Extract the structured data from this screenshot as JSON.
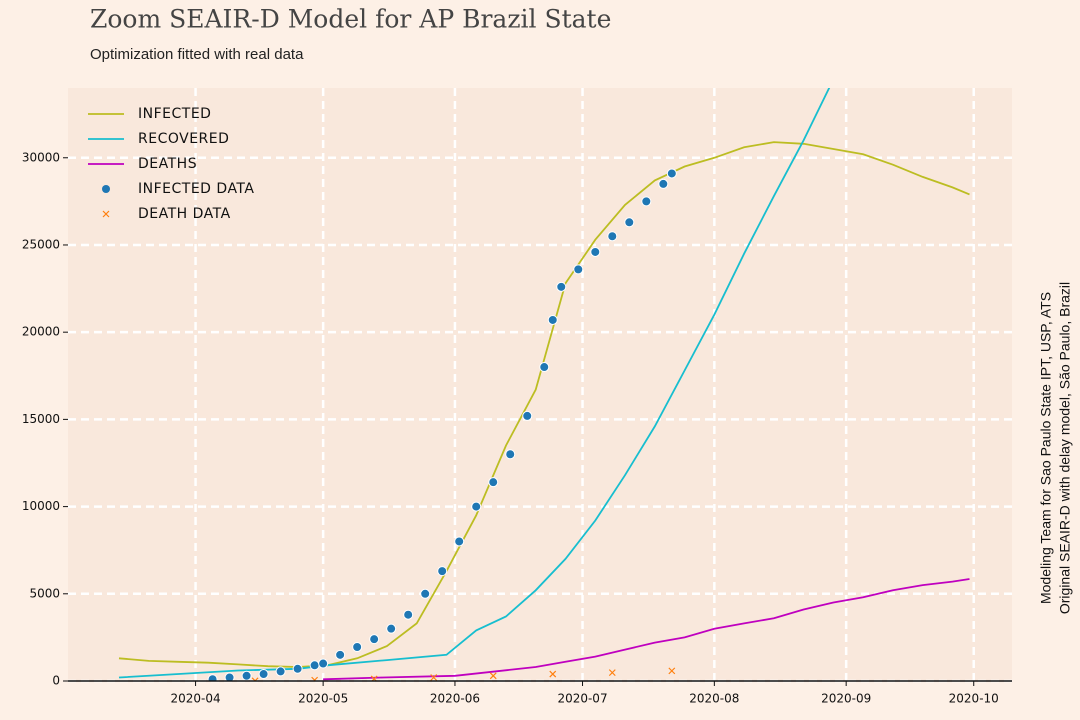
{
  "chart_data": {
    "type": "line",
    "title": "Zoom SEAIR-D Model for AP Brazil State",
    "subtitle": "Optimization fitted with real data",
    "side_notes": [
      "Modeling Team for Sao Paulo State IPT, USP, ATS",
      "Original SEAIR-D with delay model, São Paulo, Brazil"
    ],
    "xlim": [
      "2020-03-02",
      "2020-10-10"
    ],
    "xticks": [
      {
        "value": "2020-04-01",
        "label": "2020-04"
      },
      {
        "value": "2020-05-01",
        "label": "2020-05"
      },
      {
        "value": "2020-06-01",
        "label": "2020-06"
      },
      {
        "value": "2020-07-01",
        "label": "2020-07"
      },
      {
        "value": "2020-08-01",
        "label": "2020-08"
      },
      {
        "value": "2020-09-01",
        "label": "2020-09"
      },
      {
        "value": "2020-10-01",
        "label": "2020-10"
      }
    ],
    "ylim": [
      0,
      34000
    ],
    "yticks": [
      0,
      5000,
      10000,
      15000,
      20000,
      25000,
      30000
    ],
    "grid": true,
    "legend": "upper left",
    "series": [
      {
        "name": "INFECTED",
        "color": "#bcbd22",
        "type": "line",
        "x": [
          "2020-03-14",
          "2020-03-21",
          "2020-03-28",
          "2020-04-04",
          "2020-04-11",
          "2020-04-18",
          "2020-04-25",
          "2020-05-02",
          "2020-05-09",
          "2020-05-16",
          "2020-05-23",
          "2020-05-30",
          "2020-06-06",
          "2020-06-13",
          "2020-06-20",
          "2020-06-27",
          "2020-07-04",
          "2020-07-11",
          "2020-07-18",
          "2020-07-25",
          "2020-08-01",
          "2020-08-08",
          "2020-08-15",
          "2020-08-22",
          "2020-08-29",
          "2020-09-05",
          "2020-09-12",
          "2020-09-19",
          "2020-09-26",
          "2020-09-30"
        ],
        "values": [
          1300,
          1150,
          1100,
          1050,
          950,
          850,
          800,
          900,
          1300,
          2000,
          3300,
          6300,
          9500,
          13500,
          16700,
          22800,
          25300,
          27300,
          28700,
          29500,
          30000,
          30600,
          30900,
          30800,
          30500,
          30200,
          29600,
          28900,
          28300,
          27900
        ]
      },
      {
        "name": "RECOVERED",
        "color": "#17becf",
        "type": "line",
        "x": [
          "2020-03-14",
          "2020-03-28",
          "2020-04-11",
          "2020-04-25",
          "2020-05-02",
          "2020-05-16",
          "2020-05-30",
          "2020-06-06",
          "2020-06-13",
          "2020-06-20",
          "2020-06-27",
          "2020-07-04",
          "2020-07-11",
          "2020-07-18",
          "2020-07-25",
          "2020-08-01",
          "2020-08-08",
          "2020-08-15",
          "2020-08-22",
          "2020-08-29"
        ],
        "values": [
          200,
          400,
          600,
          700,
          900,
          1200,
          1500,
          2900,
          3700,
          5200,
          7000,
          9200,
          11800,
          14600,
          17800,
          21000,
          24500,
          27800,
          31000,
          34500
        ]
      },
      {
        "name": "DEATHS",
        "color": "#bf00bf",
        "type": "line",
        "x": [
          "2020-05-01",
          "2020-05-15",
          "2020-06-01",
          "2020-06-20",
          "2020-06-27",
          "2020-07-04",
          "2020-07-11",
          "2020-07-18",
          "2020-07-25",
          "2020-08-01",
          "2020-08-08",
          "2020-08-15",
          "2020-08-22",
          "2020-08-29",
          "2020-09-05",
          "2020-09-12",
          "2020-09-19",
          "2020-09-26",
          "2020-09-30"
        ],
        "values": [
          100,
          200,
          300,
          800,
          1100,
          1400,
          1800,
          2200,
          2500,
          3000,
          3300,
          3600,
          4100,
          4500,
          4800,
          5200,
          5500,
          5700,
          5850
        ]
      },
      {
        "name": "INFECTED DATA",
        "color": "#1f77b4",
        "type": "scatter",
        "x": [
          "2020-04-05",
          "2020-04-09",
          "2020-04-13",
          "2020-04-17",
          "2020-04-21",
          "2020-04-25",
          "2020-04-29",
          "2020-05-01",
          "2020-05-05",
          "2020-05-09",
          "2020-05-13",
          "2020-05-17",
          "2020-05-21",
          "2020-05-25",
          "2020-05-29",
          "2020-06-02",
          "2020-06-06",
          "2020-06-10",
          "2020-06-14",
          "2020-06-18",
          "2020-06-22",
          "2020-06-24",
          "2020-06-26",
          "2020-06-30",
          "2020-07-04",
          "2020-07-08",
          "2020-07-12",
          "2020-07-16",
          "2020-07-20",
          "2020-07-22"
        ],
        "values": [
          100,
          200,
          300,
          400,
          550,
          700,
          900,
          1000,
          1500,
          1950,
          2400,
          3000,
          3800,
          5000,
          6300,
          8000,
          10000,
          11400,
          13000,
          15200,
          18000,
          20700,
          22600,
          23600,
          24600,
          25500,
          26300,
          27500,
          28500,
          29100
        ]
      },
      {
        "name": "DEATH DATA",
        "color": "#ff7f0e",
        "type": "x",
        "x": [
          "2020-04-15",
          "2020-04-29",
          "2020-05-13",
          "2020-05-27",
          "2020-06-10",
          "2020-06-24",
          "2020-07-08",
          "2020-07-22"
        ],
        "values": [
          10,
          50,
          120,
          200,
          300,
          400,
          480,
          580
        ]
      }
    ]
  }
}
